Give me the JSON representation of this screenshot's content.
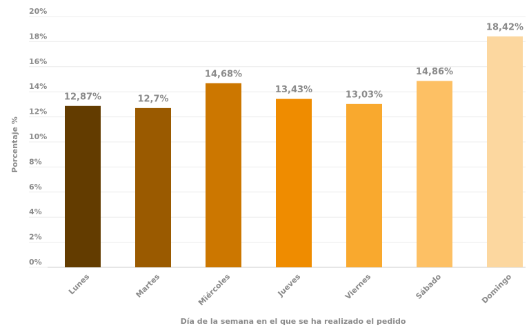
{
  "chart_data": {
    "type": "bar",
    "x_label": "Día de la semana en el que se ha realizado el pedido",
    "y_label": "Porcentaje %",
    "categories": [
      "Lunes",
      "Martes",
      "Miércoles",
      "Jueves",
      "Viernes",
      "Sábado",
      "Domingo"
    ],
    "values": [
      12.87,
      12.7,
      14.68,
      13.43,
      13.03,
      14.86,
      18.42
    ],
    "value_labels": [
      "12,87%",
      "12,7%",
      "14,68%",
      "13,43%",
      "13,03%",
      "14,86%",
      "18,42%"
    ],
    "colors": [
      "#633c00",
      "#9a5a00",
      "#cc7700",
      "#ef8c00",
      "#f9a92e",
      "#fdc064",
      "#fcd79f"
    ],
    "ylim": [
      0,
      20
    ],
    "yticks": [
      {
        "value": 0,
        "label": "0%"
      },
      {
        "value": 2,
        "label": "2%"
      },
      {
        "value": 4,
        "label": "4%"
      },
      {
        "value": 6,
        "label": "6%"
      },
      {
        "value": 8,
        "label": "8%"
      },
      {
        "value": 10,
        "label": "10%"
      },
      {
        "value": 12,
        "label": "12%"
      },
      {
        "value": 14,
        "label": "14%"
      },
      {
        "value": 16,
        "label": "16%"
      },
      {
        "value": 18,
        "label": "18%"
      },
      {
        "value": 20,
        "label": "20%"
      }
    ],
    "grid": true
  }
}
